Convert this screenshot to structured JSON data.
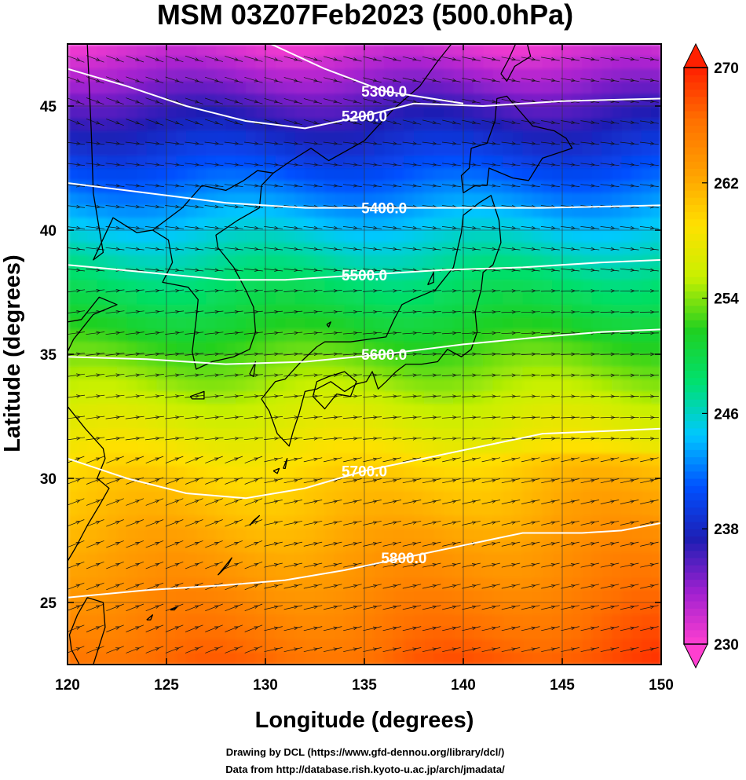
{
  "title": "MSM 03Z07Feb2023 (500.0hPa)",
  "xlabel": "Longitude (degrees)",
  "ylabel": "Latitude  (degrees)",
  "credits": [
    "Drawing by DCL (https://www.gfd-dennou.org/library/dcl/)",
    "Data from http://database.rish.kyoto-u.ac.jp/arch/jmadata/"
  ],
  "chart_data": {
    "type": "heatmap",
    "xlim": [
      120,
      150
    ],
    "ylim": [
      22.5,
      47.5
    ],
    "x_ticks": [
      120,
      125,
      130,
      135,
      140,
      145,
      150
    ],
    "y_ticks": [
      25,
      30,
      35,
      40,
      45
    ],
    "colorbar": {
      "min": 230,
      "max": 270,
      "ticks": [
        230,
        238,
        246,
        254,
        262,
        270
      ],
      "colors": [
        "#ff3fd0",
        "#a020d0",
        "#1e1eb4",
        "#0050ff",
        "#00c8ff",
        "#00e070",
        "#20d020",
        "#c8f000",
        "#ffe000",
        "#ffa000",
        "#ff7000",
        "#ff2000"
      ]
    },
    "contours": [
      {
        "value": 5200,
        "label": "5200.0",
        "points": [
          [
            120,
            46.5
          ],
          [
            123,
            45.8
          ],
          [
            126,
            45.0
          ],
          [
            129,
            44.4
          ],
          [
            132,
            44.1
          ],
          [
            135,
            44.6
          ],
          [
            137.5,
            45.1
          ],
          [
            141,
            45.0
          ],
          [
            145,
            45.2
          ],
          [
            150,
            45.3
          ]
        ]
      },
      {
        "value": 5300,
        "label": "5300.0",
        "points": [
          [
            130,
            47.6
          ],
          [
            133,
            46.5
          ],
          [
            136,
            45.6
          ],
          [
            140,
            45.1
          ]
        ]
      },
      {
        "value": 5400,
        "label": "5400.0",
        "points": [
          [
            120,
            41.9
          ],
          [
            124,
            41.5
          ],
          [
            128,
            41.1
          ],
          [
            132,
            40.9
          ],
          [
            136,
            40.9
          ],
          [
            140,
            40.9
          ],
          [
            144,
            40.9
          ],
          [
            150,
            41.0
          ]
        ]
      },
      {
        "value": 5500,
        "label": "5500.0",
        "points": [
          [
            120,
            38.6
          ],
          [
            124,
            38.3
          ],
          [
            128,
            38.0
          ],
          [
            131,
            38.0
          ],
          [
            135,
            38.2
          ],
          [
            139,
            38.4
          ],
          [
            143,
            38.5
          ],
          [
            147,
            38.7
          ],
          [
            150,
            38.8
          ]
        ]
      },
      {
        "value": 5600,
        "label": "5600.0",
        "points": [
          [
            120,
            34.9
          ],
          [
            124,
            34.8
          ],
          [
            128,
            34.6
          ],
          [
            132,
            34.7
          ],
          [
            136,
            35.0
          ],
          [
            140,
            35.4
          ],
          [
            144,
            35.7
          ],
          [
            147,
            35.9
          ],
          [
            150,
            36.0
          ]
        ]
      },
      {
        "value": 5700,
        "label": "5700.0",
        "points": [
          [
            120,
            30.8
          ],
          [
            123,
            30.0
          ],
          [
            126,
            29.4
          ],
          [
            129,
            29.2
          ],
          [
            132,
            29.6
          ],
          [
            135,
            30.3
          ],
          [
            138,
            30.8
          ],
          [
            141,
            31.3
          ],
          [
            144,
            31.8
          ],
          [
            147,
            31.9
          ],
          [
            150,
            32.0
          ]
        ]
      },
      {
        "value": 5800,
        "label": "5800.0",
        "points": [
          [
            120,
            25.2
          ],
          [
            124,
            25.5
          ],
          [
            128,
            25.7
          ],
          [
            131,
            25.9
          ],
          [
            134,
            26.3
          ],
          [
            137,
            26.8
          ],
          [
            140,
            27.3
          ],
          [
            143,
            27.8
          ],
          [
            146,
            27.8
          ],
          [
            148,
            27.9
          ],
          [
            150,
            28.2
          ]
        ]
      }
    ],
    "coastlines": [
      {
        "name": "Honshu-Kyushu",
        "points": [
          [
            129.8,
            33.2
          ],
          [
            130.2,
            32.7
          ],
          [
            130.6,
            31.8
          ],
          [
            131.2,
            31.3
          ],
          [
            131.4,
            31.9
          ],
          [
            131.7,
            32.6
          ],
          [
            132.0,
            33.5
          ],
          [
            132.6,
            33.6
          ],
          [
            133.3,
            33.9
          ],
          [
            134.0,
            33.5
          ],
          [
            134.6,
            33.8
          ],
          [
            135.1,
            33.9
          ],
          [
            135.4,
            34.3
          ],
          [
            135.7,
            33.6
          ],
          [
            136.1,
            33.9
          ],
          [
            136.6,
            34.3
          ],
          [
            137.1,
            34.6
          ],
          [
            137.9,
            34.6
          ],
          [
            138.7,
            34.7
          ],
          [
            139.2,
            35.2
          ],
          [
            139.9,
            34.9
          ],
          [
            140.4,
            35.2
          ],
          [
            140.7,
            35.9
          ],
          [
            140.6,
            36.7
          ],
          [
            140.9,
            37.6
          ],
          [
            141.0,
            38.3
          ],
          [
            141.5,
            38.6
          ],
          [
            141.9,
            39.5
          ],
          [
            141.8,
            40.4
          ],
          [
            141.4,
            41.4
          ],
          [
            140.8,
            41.1
          ],
          [
            140.0,
            40.6
          ],
          [
            139.9,
            39.9
          ],
          [
            139.7,
            39.2
          ],
          [
            139.5,
            38.5
          ],
          [
            138.6,
            37.6
          ],
          [
            137.4,
            37.2
          ],
          [
            136.9,
            37.0
          ],
          [
            136.5,
            36.4
          ],
          [
            136.1,
            35.7
          ],
          [
            135.2,
            35.6
          ],
          [
            134.3,
            35.5
          ],
          [
            133.0,
            35.5
          ],
          [
            132.6,
            35.3
          ],
          [
            131.8,
            34.7
          ],
          [
            131.0,
            34.0
          ],
          [
            130.5,
            33.9
          ],
          [
            130.2,
            33.6
          ],
          [
            129.8,
            33.2
          ]
        ]
      },
      {
        "name": "Shikoku",
        "points": [
          [
            132.4,
            33.3
          ],
          [
            133.0,
            32.8
          ],
          [
            133.6,
            33.4
          ],
          [
            134.3,
            33.3
          ],
          [
            134.6,
            33.9
          ],
          [
            134.0,
            34.3
          ],
          [
            133.2,
            34.1
          ],
          [
            132.6,
            33.9
          ],
          [
            132.4,
            33.3
          ]
        ]
      },
      {
        "name": "Hokkaido",
        "points": [
          [
            140.0,
            41.5
          ],
          [
            140.6,
            41.8
          ],
          [
            141.2,
            41.8
          ],
          [
            141.3,
            42.5
          ],
          [
            142.5,
            42.1
          ],
          [
            143.3,
            42.0
          ],
          [
            144.0,
            42.9
          ],
          [
            145.5,
            43.3
          ],
          [
            145.2,
            43.7
          ],
          [
            144.6,
            44.0
          ],
          [
            143.5,
            44.2
          ],
          [
            142.2,
            45.4
          ],
          [
            141.7,
            45.3
          ],
          [
            141.6,
            44.4
          ],
          [
            141.2,
            43.5
          ],
          [
            140.4,
            43.3
          ],
          [
            140.3,
            42.5
          ],
          [
            139.9,
            42.2
          ],
          [
            140.0,
            41.5
          ]
        ]
      },
      {
        "name": "Sakhalin",
        "points": [
          [
            141.9,
            46.3
          ],
          [
            142.3,
            46.9
          ],
          [
            142.7,
            47.6
          ],
          [
            143.2,
            47.6
          ],
          [
            143.4,
            47.0
          ],
          [
            143.0,
            46.8
          ],
          [
            142.6,
            46.6
          ],
          [
            142.2,
            46.0
          ],
          [
            141.9,
            46.3
          ]
        ]
      },
      {
        "name": "Korea",
        "points": [
          [
            124.3,
            40.0
          ],
          [
            125.1,
            39.6
          ],
          [
            125.3,
            38.7
          ],
          [
            124.8,
            37.9
          ],
          [
            126.1,
            37.7
          ],
          [
            126.6,
            37.2
          ],
          [
            126.5,
            36.4
          ],
          [
            126.3,
            35.1
          ],
          [
            126.5,
            34.4
          ],
          [
            127.3,
            34.7
          ],
          [
            128.4,
            34.9
          ],
          [
            129.2,
            35.2
          ],
          [
            129.5,
            35.9
          ],
          [
            129.4,
            36.9
          ],
          [
            129.0,
            37.6
          ],
          [
            128.4,
            38.5
          ],
          [
            127.6,
            39.3
          ],
          [
            127.5,
            39.8
          ],
          [
            128.6,
            40.4
          ],
          [
            129.7,
            40.9
          ],
          [
            129.8,
            41.8
          ],
          [
            130.4,
            42.3
          ],
          [
            129.6,
            42.4
          ],
          [
            128.9,
            42.0
          ],
          [
            128.0,
            41.6
          ],
          [
            126.8,
            41.8
          ],
          [
            125.8,
            40.9
          ],
          [
            124.3,
            40.0
          ]
        ]
      },
      {
        "name": "Mainland-East",
        "points": [
          [
            130.4,
            42.3
          ],
          [
            131.3,
            42.8
          ],
          [
            132.3,
            43.3
          ],
          [
            133.2,
            42.8
          ],
          [
            135.0,
            43.6
          ],
          [
            136.5,
            44.9
          ],
          [
            137.8,
            45.8
          ],
          [
            138.7,
            46.8
          ],
          [
            139.4,
            47.5
          ]
        ]
      },
      {
        "name": "China-Coast",
        "points": [
          [
            121.0,
            47.5
          ],
          [
            121.2,
            44.0
          ],
          [
            121.3,
            41.5
          ],
          [
            121.8,
            39.1
          ],
          [
            121.3,
            38.8
          ],
          [
            122.3,
            40.5
          ],
          [
            123.5,
            39.9
          ],
          [
            124.3,
            40.0
          ]
        ]
      },
      {
        "name": "Shandong-Jiangsu",
        "points": [
          [
            120.0,
            36.3
          ],
          [
            120.7,
            36.4
          ],
          [
            121.6,
            37.3
          ],
          [
            122.5,
            37.0
          ],
          [
            121.3,
            36.6
          ],
          [
            120.8,
            36.1
          ],
          [
            120.3,
            35.6
          ],
          [
            120.0,
            35.1
          ]
        ]
      },
      {
        "name": "China-South",
        "points": [
          [
            120.0,
            32.9
          ],
          [
            120.9,
            32.0
          ],
          [
            121.8,
            31.2
          ],
          [
            121.9,
            30.8
          ],
          [
            121.5,
            30.0
          ],
          [
            122.1,
            29.6
          ],
          [
            121.6,
            28.9
          ],
          [
            121.0,
            28.1
          ],
          [
            120.4,
            27.2
          ],
          [
            119.8,
            26.4
          ],
          [
            119.6,
            25.6
          ],
          [
            119.0,
            25.0
          ],
          [
            118.4,
            24.5
          ]
        ]
      },
      {
        "name": "Taiwan",
        "points": [
          [
            121.0,
            25.2
          ],
          [
            121.8,
            25.0
          ],
          [
            121.9,
            24.0
          ],
          [
            121.3,
            22.5
          ],
          [
            120.6,
            22.5
          ],
          [
            120.2,
            23.1
          ],
          [
            120.1,
            23.7
          ],
          [
            120.5,
            24.5
          ],
          [
            121.0,
            25.2
          ]
        ]
      },
      {
        "name": "Tsushima",
        "points": [
          [
            129.2,
            34.2
          ],
          [
            129.5,
            34.7
          ],
          [
            129.4,
            34.1
          ],
          [
            129.2,
            34.2
          ]
        ]
      },
      {
        "name": "Jeju",
        "points": [
          [
            126.2,
            33.3
          ],
          [
            126.9,
            33.5
          ],
          [
            126.9,
            33.2
          ],
          [
            126.3,
            33.2
          ],
          [
            126.2,
            33.3
          ]
        ]
      },
      {
        "name": "Okinawa",
        "points": [
          [
            127.6,
            26.1
          ],
          [
            128.3,
            26.8
          ],
          [
            128.1,
            26.5
          ],
          [
            127.6,
            26.1
          ]
        ]
      },
      {
        "name": "Amami",
        "points": [
          [
            129.2,
            28.1
          ],
          [
            129.7,
            28.5
          ],
          [
            129.4,
            28.3
          ],
          [
            129.2,
            28.1
          ]
        ]
      },
      {
        "name": "Miyako",
        "points": [
          [
            125.2,
            24.7
          ],
          [
            125.5,
            24.8
          ],
          [
            125.4,
            24.7
          ],
          [
            125.2,
            24.7
          ]
        ]
      },
      {
        "name": "Ishigaki",
        "points": [
          [
            124.0,
            24.3
          ],
          [
            124.3,
            24.5
          ],
          [
            124.2,
            24.3
          ],
          [
            124.0,
            24.3
          ]
        ]
      },
      {
        "name": "Yakushima",
        "points": [
          [
            130.4,
            30.3
          ],
          [
            130.7,
            30.4
          ],
          [
            130.6,
            30.2
          ],
          [
            130.4,
            30.3
          ]
        ]
      },
      {
        "name": "Tanegashima",
        "points": [
          [
            130.9,
            30.4
          ],
          [
            131.1,
            30.8
          ],
          [
            131.0,
            30.4
          ],
          [
            130.9,
            30.4
          ]
        ]
      },
      {
        "name": "Sado",
        "points": [
          [
            138.2,
            37.8
          ],
          [
            138.5,
            38.3
          ],
          [
            138.5,
            37.9
          ],
          [
            138.2,
            37.8
          ]
        ]
      },
      {
        "name": "Oki",
        "points": [
          [
            133.1,
            36.2
          ],
          [
            133.3,
            36.3
          ],
          [
            133.2,
            36.1
          ],
          [
            133.1,
            36.2
          ]
        ]
      }
    ]
  }
}
